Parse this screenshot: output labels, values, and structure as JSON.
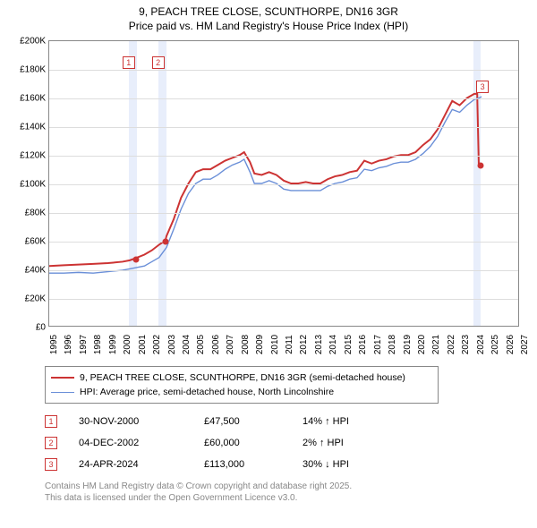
{
  "title": {
    "line1": "9, PEACH TREE CLOSE, SCUNTHORPE, DN16 3GR",
    "line2": "Price paid vs. HM Land Registry's House Price Index (HPI)",
    "fontsize": 12,
    "color": "#222222"
  },
  "chart": {
    "type": "line",
    "background_color": "#ffffff",
    "grid_color": "#dddddd",
    "border_color": "#888888",
    "ylim": [
      0,
      200000
    ],
    "ytick_step": 20000,
    "ytick_format_prefix": "£",
    "ytick_format_suffix": "K",
    "xlim": [
      1995,
      2027
    ],
    "xtick_step": 1,
    "xtick_fontsize": 10,
    "ytick_fontsize": 10,
    "shade_color": "#e8eefb",
    "shade_bands": [
      {
        "from": 2000.4,
        "to": 2000.95
      },
      {
        "from": 2002.4,
        "to": 2003.0
      },
      {
        "from": 2023.85,
        "to": 2024.35
      }
    ],
    "marker_box_border": "#cc3333",
    "markers": [
      {
        "label": "1",
        "x": 2000.4,
        "y": 185000
      },
      {
        "label": "2",
        "x": 2002.4,
        "y": 185000
      },
      {
        "label": "3",
        "x": 2024.45,
        "y": 168000
      }
    ],
    "series": [
      {
        "name": "9, PEACH TREE CLOSE, SCUNTHORPE, DN16 3GR (semi-detached house)",
        "color": "#cc3333",
        "line_width": 2,
        "points": [
          [
            1995,
            42000
          ],
          [
            1996,
            42500
          ],
          [
            1997,
            43000
          ],
          [
            1998,
            43500
          ],
          [
            1999,
            44000
          ],
          [
            2000,
            45000
          ],
          [
            2000.5,
            46000
          ],
          [
            2000.9,
            47500
          ],
          [
            2001.5,
            50000
          ],
          [
            2002,
            53000
          ],
          [
            2002.5,
            57000
          ],
          [
            2002.93,
            60000
          ],
          [
            2003,
            63000
          ],
          [
            2003.5,
            75000
          ],
          [
            2004,
            90000
          ],
          [
            2004.5,
            100000
          ],
          [
            2005,
            108000
          ],
          [
            2005.5,
            110000
          ],
          [
            2006,
            110000
          ],
          [
            2006.5,
            113000
          ],
          [
            2007,
            116000
          ],
          [
            2007.5,
            118000
          ],
          [
            2008,
            120000
          ],
          [
            2008.3,
            122000
          ],
          [
            2008.7,
            115000
          ],
          [
            2009,
            107000
          ],
          [
            2009.5,
            106000
          ],
          [
            2010,
            108000
          ],
          [
            2010.5,
            106000
          ],
          [
            2011,
            102000
          ],
          [
            2011.5,
            100000
          ],
          [
            2012,
            100000
          ],
          [
            2012.5,
            101000
          ],
          [
            2013,
            100000
          ],
          [
            2013.5,
            100000
          ],
          [
            2014,
            103000
          ],
          [
            2014.5,
            105000
          ],
          [
            2015,
            106000
          ],
          [
            2015.5,
            108000
          ],
          [
            2016,
            109000
          ],
          [
            2016.5,
            116000
          ],
          [
            2017,
            114000
          ],
          [
            2017.5,
            116000
          ],
          [
            2018,
            117000
          ],
          [
            2018.5,
            119000
          ],
          [
            2019,
            120000
          ],
          [
            2019.5,
            120000
          ],
          [
            2020,
            122000
          ],
          [
            2020.5,
            127000
          ],
          [
            2021,
            131000
          ],
          [
            2021.5,
            138000
          ],
          [
            2022,
            148000
          ],
          [
            2022.5,
            158000
          ],
          [
            2023,
            155000
          ],
          [
            2023.5,
            160000
          ],
          [
            2024,
            163000
          ],
          [
            2024.2,
            163000
          ],
          [
            2024.31,
            113000
          ]
        ],
        "dots": [
          {
            "x": 2000.9,
            "y": 47500
          },
          {
            "x": 2002.93,
            "y": 60000
          },
          {
            "x": 2024.31,
            "y": 113000
          }
        ]
      },
      {
        "name": "HPI: Average price, semi-detached house, North Lincolnshire",
        "color": "#6a8fd8",
        "line_width": 1.4,
        "points": [
          [
            1995,
            37000
          ],
          [
            1996,
            37000
          ],
          [
            1997,
            37500
          ],
          [
            1998,
            37000
          ],
          [
            1999,
            38000
          ],
          [
            2000,
            39000
          ],
          [
            2000.5,
            40000
          ],
          [
            2001,
            41000
          ],
          [
            2001.5,
            42000
          ],
          [
            2002,
            45000
          ],
          [
            2002.5,
            48000
          ],
          [
            2003,
            55000
          ],
          [
            2003.5,
            68000
          ],
          [
            2004,
            82000
          ],
          [
            2004.5,
            93000
          ],
          [
            2005,
            100000
          ],
          [
            2005.5,
            103000
          ],
          [
            2006,
            103000
          ],
          [
            2006.5,
            106000
          ],
          [
            2007,
            110000
          ],
          [
            2007.5,
            113000
          ],
          [
            2008,
            115000
          ],
          [
            2008.3,
            117000
          ],
          [
            2008.7,
            108000
          ],
          [
            2009,
            100000
          ],
          [
            2009.5,
            100000
          ],
          [
            2010,
            102000
          ],
          [
            2010.5,
            100000
          ],
          [
            2011,
            96000
          ],
          [
            2011.5,
            95000
          ],
          [
            2012,
            95000
          ],
          [
            2012.5,
            95000
          ],
          [
            2013,
            95000
          ],
          [
            2013.5,
            95000
          ],
          [
            2014,
            98000
          ],
          [
            2014.5,
            100000
          ],
          [
            2015,
            101000
          ],
          [
            2015.5,
            103000
          ],
          [
            2016,
            104000
          ],
          [
            2016.5,
            110000
          ],
          [
            2017,
            109000
          ],
          [
            2017.5,
            111000
          ],
          [
            2018,
            112000
          ],
          [
            2018.5,
            114000
          ],
          [
            2019,
            115000
          ],
          [
            2019.5,
            115000
          ],
          [
            2020,
            117000
          ],
          [
            2020.5,
            121000
          ],
          [
            2021,
            126000
          ],
          [
            2021.5,
            133000
          ],
          [
            2022,
            143000
          ],
          [
            2022.5,
            152000
          ],
          [
            2023,
            150000
          ],
          [
            2023.5,
            155000
          ],
          [
            2024,
            159000
          ],
          [
            2024.31,
            160000
          ],
          [
            2024.5,
            161000
          ]
        ]
      }
    ]
  },
  "legend": {
    "border_color": "#888888",
    "fontsize": 10.5,
    "items": [
      {
        "color": "#cc3333",
        "width": 2,
        "label": "9, PEACH TREE CLOSE, SCUNTHORPE, DN16 3GR (semi-detached house)"
      },
      {
        "color": "#6a8fd8",
        "width": 1.4,
        "label": "HPI: Average price, semi-detached house, North Lincolnshire"
      }
    ]
  },
  "transactions": {
    "fontsize": 11,
    "marker_border": "#cc3333",
    "rows": [
      {
        "marker": "1",
        "date": "30-NOV-2000",
        "price": "£47,500",
        "diff": "14% ↑ HPI"
      },
      {
        "marker": "2",
        "date": "04-DEC-2002",
        "price": "£60,000",
        "diff": "2% ↑ HPI"
      },
      {
        "marker": "3",
        "date": "24-APR-2024",
        "price": "£113,000",
        "diff": "30% ↓ HPI"
      }
    ]
  },
  "footer": {
    "color": "#888888",
    "fontsize": 10,
    "line1": "Contains HM Land Registry data © Crown copyright and database right 2025.",
    "line2": "This data is licensed under the Open Government Licence v3.0."
  }
}
